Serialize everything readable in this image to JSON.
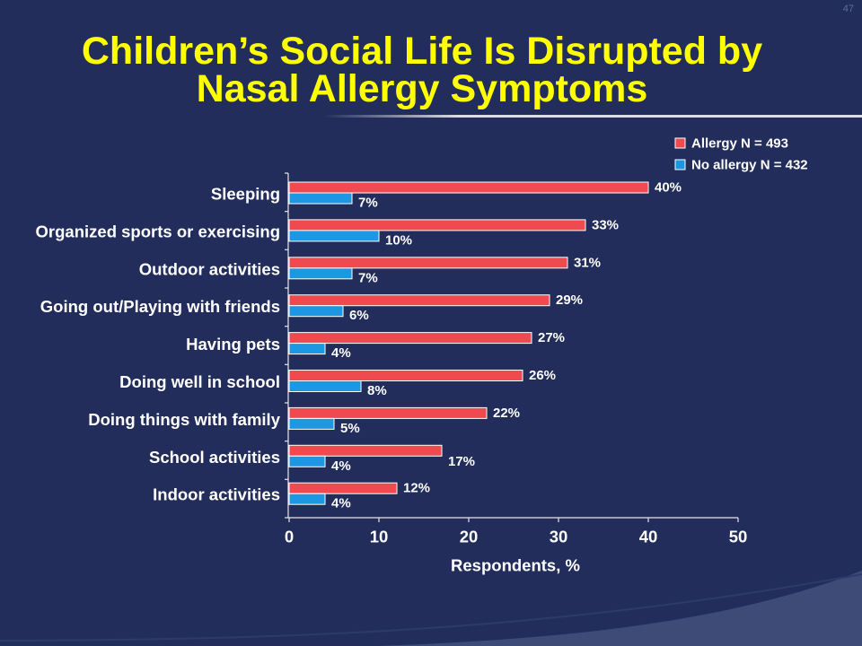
{
  "slide": {
    "number": "47",
    "title_line1": "Children’s Social Life Is Disrupted by",
    "title_line2": "Nasal Allergy Symptoms"
  },
  "colors": {
    "background": "#222d5b",
    "title": "#ffff00",
    "text": "#ffffff",
    "accent_swoosh": "#3f4b77",
    "divider": "#d9dbe5"
  },
  "chart_data": {
    "type": "bar",
    "orientation": "horizontal",
    "categories": [
      "Sleeping",
      "Organized sports or exercising",
      "Outdoor activities",
      "Going out/Playing with friends",
      "Having pets",
      "Doing well in school",
      "Doing things with family",
      "School activities",
      "Indoor activities"
    ],
    "series": [
      {
        "name": "Allergy N = 493",
        "color": "#ee4a4f",
        "values": [
          40,
          33,
          31,
          29,
          27,
          26,
          22,
          17,
          12
        ],
        "labels": [
          "40%",
          "33%",
          "31%",
          "29%",
          "27%",
          "26%",
          "22%",
          "17%",
          "12%"
        ]
      },
      {
        "name": "No allergy N = 432",
        "color": "#1e97e3",
        "values": [
          7,
          10,
          7,
          6,
          4,
          8,
          5,
          4,
          4
        ],
        "labels": [
          "7%",
          "10%",
          "7%",
          "6%",
          "4%",
          "8%",
          "5%",
          "4%",
          "4%"
        ]
      }
    ],
    "xlabel": "Respondents, %",
    "xlim": [
      0,
      50
    ],
    "xticks": [
      0,
      10,
      20,
      30,
      40,
      50
    ],
    "legend": "top-right",
    "grid": false
  }
}
